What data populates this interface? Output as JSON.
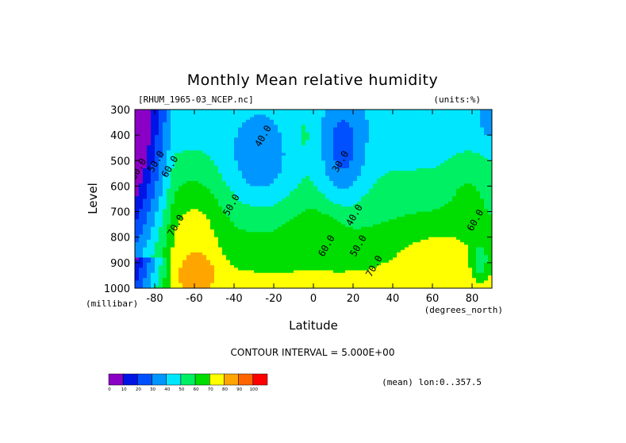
{
  "chart_data": {
    "type": "heatmap",
    "title": "Monthly Mean relative humidity",
    "subtitle_left": "[RHUM_1965-03_NCEP.nc]",
    "subtitle_right": "(units:%)",
    "xlabel": "Latitude",
    "xunits": "(degrees_north)",
    "ylabel": "Level",
    "yunits": "(millibar)",
    "xlim": [
      -90,
      90
    ],
    "ylim": [
      1000,
      300
    ],
    "x_ticks": [
      -80,
      -60,
      -40,
      -20,
      0,
      20,
      40,
      60,
      80
    ],
    "y_ticks": [
      300,
      400,
      500,
      600,
      700,
      800,
      900,
      1000
    ],
    "contour_interval_text": "CONTOUR INTERVAL = 5.000E+00",
    "footer_right": "(mean) lon:0..357.5",
    "colorbar": {
      "levels": [
        0,
        10,
        20,
        30,
        40,
        50,
        60,
        70,
        80,
        90,
        100
      ],
      "colors": [
        "#8a00c4",
        "#0014e6",
        "#0050ff",
        "#0096ff",
        "#00e6ff",
        "#00f064",
        "#00dd00",
        "#ffff00",
        "#ffa500",
        "#ff6400",
        "#ff0000"
      ]
    },
    "contour_labels": [
      {
        "text": "40.0",
        "x": -24,
        "y": 410
      },
      {
        "text": "30.0",
        "x": 15,
        "y": 510
      },
      {
        "text": "50.0",
        "x": -78,
        "y": 510
      },
      {
        "text": "60.0",
        "x": -87,
        "y": 540
      },
      {
        "text": "60.0",
        "x": -71,
        "y": 530
      },
      {
        "text": "50.0",
        "x": -40,
        "y": 680
      },
      {
        "text": "40.0",
        "x": 22,
        "y": 720
      },
      {
        "text": "70.0",
        "x": -68,
        "y": 760
      },
      {
        "text": "60.0",
        "x": 8,
        "y": 840
      },
      {
        "text": "50.0",
        "x": 24,
        "y": 840
      },
      {
        "text": "70.0",
        "x": 32,
        "y": 920
      },
      {
        "text": "60.0",
        "x": 83,
        "y": 740
      }
    ]
  }
}
